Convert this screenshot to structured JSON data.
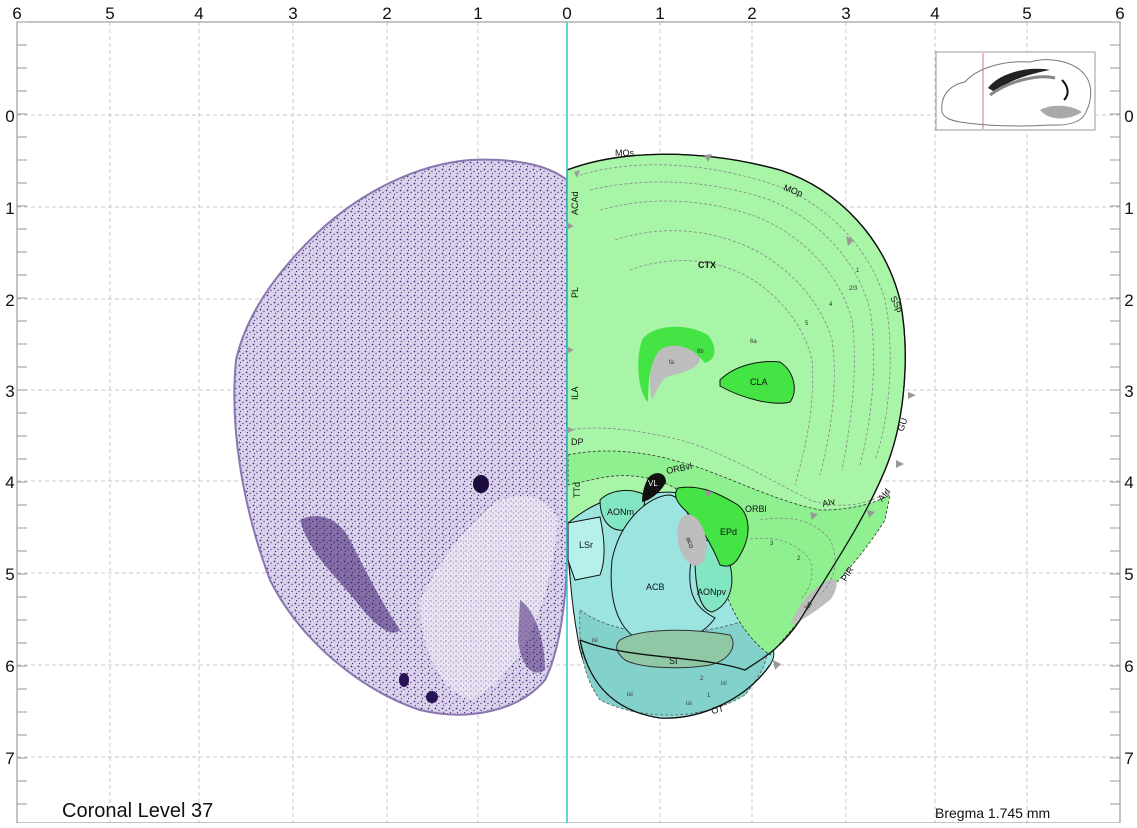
{
  "caption": "Coronal Level 37",
  "bregma": "Bregma 1.745 mm",
  "axes": {
    "top_labels": [
      "6",
      "5",
      "4",
      "3",
      "2",
      "1",
      "0",
      "1",
      "2",
      "3",
      "4",
      "5",
      "6"
    ],
    "side_labels": [
      "0",
      "1",
      "2",
      "3",
      "4",
      "5",
      "6",
      "7"
    ]
  },
  "regions": {
    "mos": "MOs",
    "mop": "MOp",
    "ssp": "SSp",
    "gu": "GU",
    "aid": "AId",
    "aiv": "AIv",
    "pir": "PIR",
    "lot": "lot",
    "ot": "OT",
    "acad": "ACAd",
    "pl": "PL",
    "ila": "ILA",
    "dp": "DP",
    "ttd": "TTd",
    "orbvl": "ORBvl",
    "orbl": "ORBl",
    "vl": "VL",
    "aonm": "AONm",
    "lsr": "LSr",
    "acb": "ACB",
    "aco": "aco",
    "epd": "EPd",
    "aonpv": "AONpv",
    "si": "SI",
    "isl": "isl",
    "cla": "CLA",
    "ctx": "CTX",
    "fa": "fa",
    "l6b": "6b",
    "l6a": "6a"
  },
  "layers": [
    "1",
    "2/3",
    "4",
    "5",
    "3",
    "2",
    "2",
    "1"
  ],
  "colors": {
    "cortex": "#a8f5a8",
    "claustrum": "#44e444",
    "striatum": "#9be4e0",
    "fiber": "#bdbdbd",
    "midline": "#33c6d0",
    "nissl": "#5e3f8e"
  }
}
